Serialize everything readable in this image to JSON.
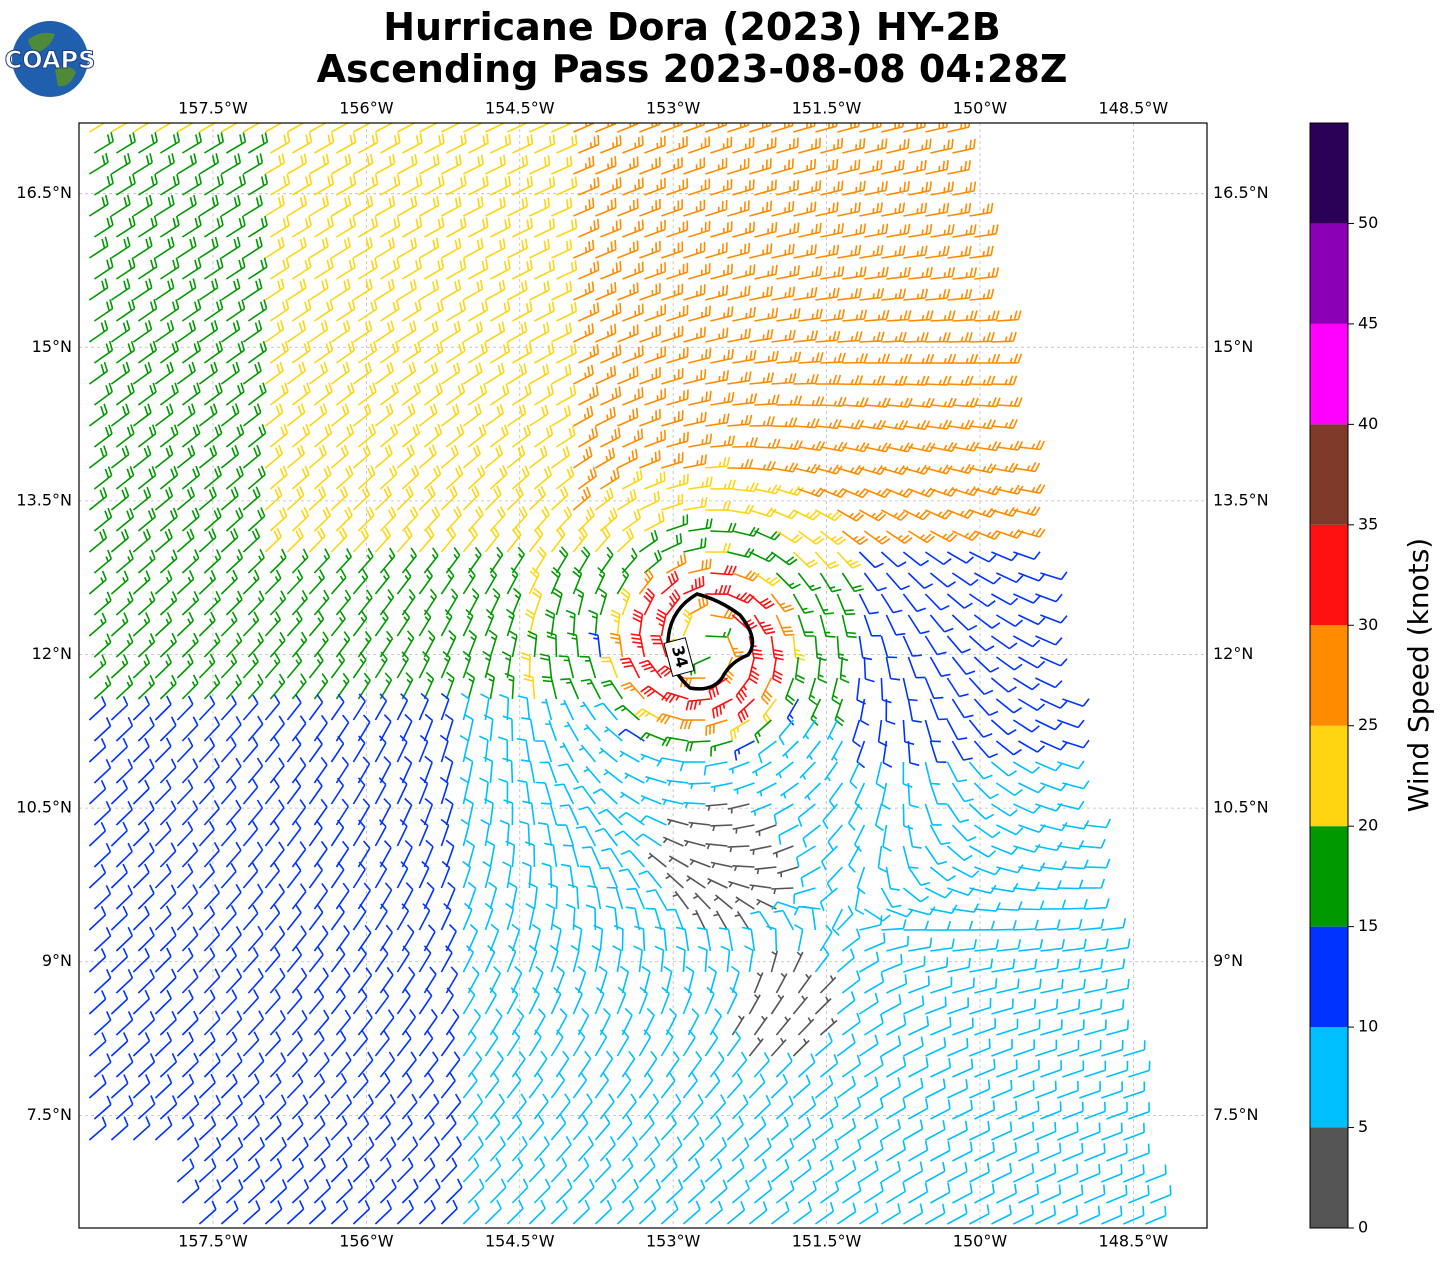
{
  "title_lines": [
    "Hurricane Dora (2023) HY-2B",
    "Ascending Pass 2023-08-08 04:28Z"
  ],
  "logo": "COAPS",
  "map": {
    "xlim": [
      -158.81,
      -147.78
    ],
    "ylim": [
      6.4,
      17.19
    ],
    "xticks": [
      {
        "value": -157.5,
        "label": "157.5°W"
      },
      {
        "value": -156,
        "label": "156°W"
      },
      {
        "value": -154.5,
        "label": "154.5°W"
      },
      {
        "value": -153,
        "label": "153°W"
      },
      {
        "value": -151.5,
        "label": "151.5°W"
      },
      {
        "value": -150,
        "label": "150°W"
      },
      {
        "value": -148.5,
        "label": "148.5°W"
      }
    ],
    "yticks": [
      {
        "value": 16.5,
        "label": "16.5°N"
      },
      {
        "value": 15,
        "label": "15°N"
      },
      {
        "value": 13.5,
        "label": "13.5°N"
      },
      {
        "value": 12,
        "label": "12°N"
      },
      {
        "value": 10.5,
        "label": "10.5°N"
      },
      {
        "value": 9,
        "label": "9°N"
      },
      {
        "value": 7.5,
        "label": "7.5°N"
      }
    ],
    "grid": true,
    "contour_label": "34"
  },
  "colorbar": {
    "label": "Wind Speed (knots)",
    "bounds": [
      0,
      5,
      10,
      15,
      20,
      25,
      30,
      35,
      40,
      45,
      50,
      55
    ],
    "colors": [
      "#555555",
      "#00bfff",
      "#0033ff",
      "#009900",
      "#ffd512",
      "#ff8c00",
      "#ff1010",
      "#7f3a2a",
      "#ff00ff",
      "#8b00b5",
      "#2b0057"
    ],
    "ticks": [
      0,
      5,
      10,
      15,
      20,
      25,
      30,
      35,
      40,
      45,
      50
    ]
  }
}
